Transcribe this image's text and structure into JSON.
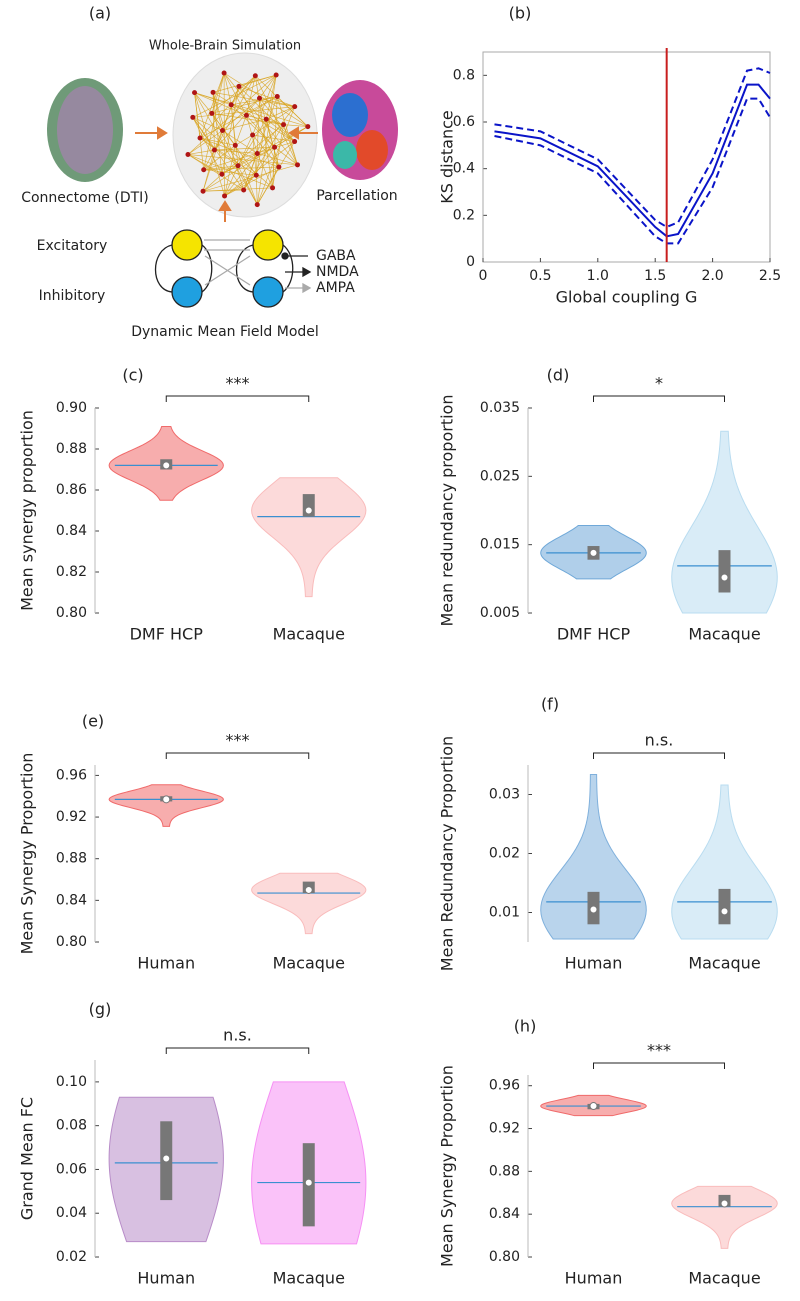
{
  "diagram": {
    "label": "(a)",
    "title": "Whole-Brain Simulation",
    "left": "Connectome (DTI)",
    "right": "Parcellation",
    "excitatory": "Excitatory",
    "inhibitory": "Inhibitory",
    "legend": [
      "GABA",
      "NMDA",
      "AMPA"
    ],
    "caption": "Dynamic Mean Field Model"
  },
  "chart_data": [
    {
      "type": "line",
      "label": "(b)",
      "xlabel": "Global coupling G",
      "ylabel": "KS distance",
      "x": [
        0.1,
        0.5,
        1.0,
        1.5,
        1.6,
        1.7,
        2.0,
        2.3,
        2.4,
        2.5
      ],
      "series": [
        {
          "style": "solid",
          "color": "#0a14c8",
          "values": [
            0.56,
            0.53,
            0.41,
            0.15,
            0.11,
            0.12,
            0.38,
            0.76,
            0.76,
            0.7
          ]
        },
        {
          "style": "dashed",
          "color": "#0a14c8",
          "values": [
            0.59,
            0.56,
            0.44,
            0.18,
            0.15,
            0.17,
            0.44,
            0.82,
            0.83,
            0.81
          ]
        },
        {
          "style": "dashed",
          "color": "#0a14c8",
          "values": [
            0.54,
            0.5,
            0.38,
            0.11,
            0.08,
            0.08,
            0.32,
            0.7,
            0.7,
            0.62
          ]
        }
      ],
      "vline": 1.6,
      "vline_color": "#c81e1e",
      "xlim": [
        0,
        2.5
      ],
      "ylim": [
        0,
        0.9
      ],
      "xticks": [
        0,
        0.5,
        {
          "value": 1,
          "label": "1.0"
        },
        1.5,
        {
          "value": 2,
          "label": "2.0"
        },
        2.5
      ],
      "yticks": [
        0,
        0.2,
        0.4,
        0.6,
        0.8
      ]
    },
    {
      "type": "violin",
      "label": "(c)",
      "ylabel": "Mean synergy proportion",
      "significance": "***",
      "categories": [
        "DMF HCP",
        "Macaque"
      ],
      "violins": [
        {
          "color": "#f06a6a",
          "min": 0.855,
          "q1": 0.87,
          "median": 0.872,
          "q3": 0.875,
          "max": 0.891,
          "mean": 0.872
        },
        {
          "color": "#f9bcbc",
          "min": 0.808,
          "q1": 0.847,
          "median": 0.85,
          "q3": 0.858,
          "max": 0.866,
          "mean": 0.847
        }
      ],
      "ylim": [
        0.8,
        0.9
      ],
      "yticks": [
        {
          "value": 0.8,
          "label": "0.80"
        },
        0.82,
        0.84,
        0.86,
        0.88,
        {
          "value": 0.9,
          "label": "0.90"
        }
      ]
    },
    {
      "type": "violin",
      "label": "(d)",
      "ylabel": "Mean redundancy proportion",
      "significance": "*",
      "categories": [
        "DMF HCP",
        "Macaque"
      ],
      "violins": [
        {
          "color": "#6fa8d8",
          "min": 0.01,
          "q1": 0.0128,
          "median": 0.0138,
          "q3": 0.0148,
          "max": 0.0178,
          "mean": 0.0138
        },
        {
          "color": "#b9dcf0",
          "min": 0.005,
          "q1": 0.008,
          "median": 0.0102,
          "q3": 0.0142,
          "max": 0.0316,
          "mean": 0.0119
        }
      ],
      "ylim": [
        0.005,
        0.035
      ],
      "yticks": [
        0.005,
        0.015,
        0.025,
        0.035
      ]
    },
    {
      "type": "violin",
      "label": "(e)",
      "ylabel": "Mean Synergy Proportion",
      "significance": "***",
      "categories": [
        "Human",
        "Macaque"
      ],
      "violins": [
        {
          "color": "#f06a6a",
          "min": 0.911,
          "q1": 0.935,
          "median": 0.937,
          "q3": 0.94,
          "max": 0.951,
          "mean": 0.937
        },
        {
          "color": "#f9bcbc",
          "min": 0.808,
          "q1": 0.847,
          "median": 0.85,
          "q3": 0.858,
          "max": 0.866,
          "mean": 0.847
        }
      ],
      "ylim": [
        0.8,
        0.97
      ],
      "yticks": [
        {
          "value": 0.8,
          "label": "0.80"
        },
        0.84,
        0.88,
        0.92,
        0.96
      ]
    },
    {
      "type": "violin",
      "label": "(f)",
      "ylabel": "Mean Redundancy Proportion",
      "significance": "n.s.",
      "categories": [
        "Human",
        "Macaque"
      ],
      "violins": [
        {
          "color": "#7fb0dc",
          "min": 0.0055,
          "q1": 0.008,
          "median": 0.0105,
          "q3": 0.0135,
          "max": 0.0334,
          "mean": 0.0118
        },
        {
          "color": "#b9dcf0",
          "min": 0.0055,
          "q1": 0.008,
          "median": 0.0102,
          "q3": 0.014,
          "max": 0.0316,
          "mean": 0.0118
        }
      ],
      "ylim": [
        0.005,
        0.035
      ],
      "yticks": [
        0.01,
        0.02,
        0.03
      ]
    },
    {
      "type": "violin",
      "label": "(g)",
      "ylabel": "Grand Mean FC",
      "significance": "n.s.",
      "categories": [
        "Human",
        "Macaque"
      ],
      "violins": [
        {
          "color": "#b88cc8",
          "min": 0.027,
          "q1": 0.046,
          "median": 0.065,
          "q3": 0.082,
          "max": 0.093,
          "mean": 0.063
        },
        {
          "color": "#f690f4",
          "min": 0.026,
          "q1": 0.034,
          "median": 0.054,
          "q3": 0.072,
          "max": 0.1,
          "mean": 0.054
        }
      ],
      "ylim": [
        0.02,
        0.11
      ],
      "yticks": [
        0.02,
        0.04,
        0.06,
        0.08,
        {
          "value": 0.1,
          "label": "0.10"
        }
      ]
    },
    {
      "type": "violin",
      "label": "(h)",
      "ylabel": "Mean Synergy Proportion",
      "significance": "***",
      "categories": [
        "Human",
        "Macaque"
      ],
      "violins": [
        {
          "color": "#f06a6a",
          "min": 0.932,
          "q1": 0.938,
          "median": 0.941,
          "q3": 0.943,
          "max": 0.951,
          "mean": 0.941
        },
        {
          "color": "#f9bcbc",
          "min": 0.808,
          "q1": 0.847,
          "median": 0.85,
          "q3": 0.858,
          "max": 0.866,
          "mean": 0.847
        }
      ],
      "ylim": [
        0.8,
        0.97
      ],
      "yticks": [
        {
          "value": 0.8,
          "label": "0.80"
        },
        0.84,
        0.88,
        0.92,
        0.96
      ]
    }
  ]
}
